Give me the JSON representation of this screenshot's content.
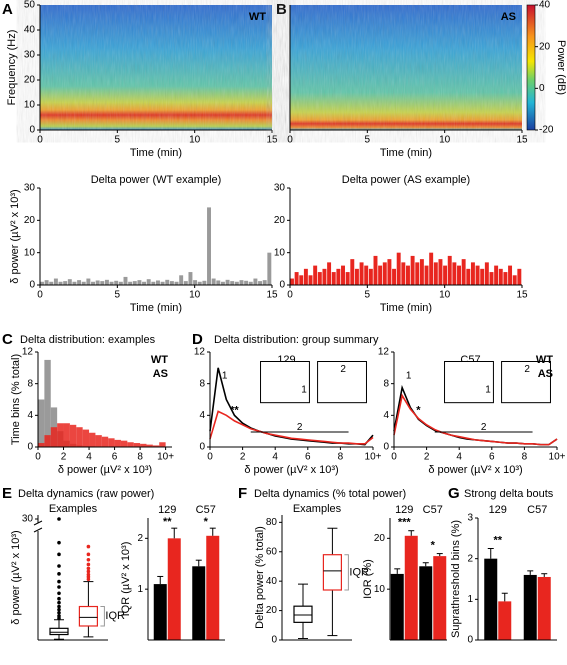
{
  "chart_data": [
    {
      "type": "heatmap",
      "panel": "A",
      "label": "WT",
      "xlabel": "Time (min)",
      "ylabel": "Frequency (Hz)",
      "xlim": [
        0,
        15
      ],
      "xticks": [
        0,
        5,
        10,
        15
      ],
      "ylim": [
        0,
        50
      ],
      "yticks": [
        0,
        10,
        20,
        30,
        40,
        50
      ]
    },
    {
      "type": "heatmap",
      "panel": "B",
      "label": "AS",
      "xlabel": "Time (min)",
      "xlim": [
        0,
        15
      ],
      "xticks": [
        0,
        5,
        10,
        15
      ],
      "ylim": [
        0,
        50
      ],
      "colorbar": {
        "label": "Power (dB)",
        "lim": [
          -20,
          40
        ],
        "ticks": [
          -20,
          0,
          20,
          40
        ]
      }
    },
    {
      "type": "bar",
      "title": "Delta power (WT example)",
      "xlabel": "Time (min)",
      "ylabel": "δ power (µV² x 10³)",
      "xlim": [
        0,
        15
      ],
      "xticks": [
        0,
        5,
        10,
        15
      ],
      "ylim": [
        0,
        30
      ],
      "yticks": [
        0,
        10,
        20,
        30
      ],
      "color": "#9a9a9a",
      "x": [
        0,
        0.3,
        0.6,
        0.9,
        1.2,
        1.5,
        1.8,
        2.1,
        2.4,
        2.7,
        3,
        3.3,
        3.6,
        3.9,
        4.2,
        4.5,
        4.8,
        5.1,
        5.4,
        5.7,
        6,
        6.3,
        6.6,
        6.9,
        7.2,
        7.5,
        7.8,
        8.1,
        8.4,
        8.7,
        9,
        9.3,
        9.6,
        9.9,
        10.2,
        10.5,
        10.8,
        11.1,
        11.4,
        11.7,
        12,
        12.3,
        12.6,
        12.9,
        13.2,
        13.5,
        13.8,
        14.1,
        14.4,
        14.7
      ],
      "values": [
        1,
        1.5,
        1,
        2,
        1,
        1.2,
        1.8,
        1,
        1.5,
        1,
        2,
        1,
        1.4,
        1.2,
        1.6,
        1,
        1.3,
        1,
        2.5,
        1,
        1.2,
        1.5,
        1,
        1.8,
        1,
        1.4,
        1,
        1.6,
        1.2,
        1,
        3,
        1.2,
        4,
        1.5,
        1,
        1.3,
        24,
        2,
        1.4,
        1,
        1.6,
        1.2,
        1,
        1.5,
        1.3,
        1,
        2,
        1.2,
        1.5,
        10
      ]
    },
    {
      "type": "bar",
      "title": "Delta power (AS example)",
      "xlabel": "Time (min)",
      "xlim": [
        0,
        15
      ],
      "xticks": [
        0,
        5,
        10,
        15
      ],
      "ylim": [
        0,
        30
      ],
      "yticks": [
        0,
        10,
        20,
        30
      ],
      "color": "#e8261f",
      "x": [
        0,
        0.3,
        0.6,
        0.9,
        1.2,
        1.5,
        1.8,
        2.1,
        2.4,
        2.7,
        3,
        3.3,
        3.6,
        3.9,
        4.2,
        4.5,
        4.8,
        5.1,
        5.4,
        5.7,
        6,
        6.3,
        6.6,
        6.9,
        7.2,
        7.5,
        7.8,
        8.1,
        8.4,
        8.7,
        9,
        9.3,
        9.6,
        9.9,
        10.2,
        10.5,
        10.8,
        11.1,
        11.4,
        11.7,
        12,
        12.3,
        12.6,
        12.9,
        13.2,
        13.5,
        13.8,
        14.1,
        14.4,
        14.7
      ],
      "values": [
        2,
        4,
        3,
        5,
        3,
        6,
        4,
        5,
        7,
        4,
        5,
        6,
        4,
        8,
        5,
        7,
        6,
        5,
        9,
        6,
        7,
        8,
        5,
        10,
        7,
        6,
        9,
        7,
        8,
        6,
        10,
        7,
        8,
        6,
        9,
        7,
        6,
        8,
        5,
        7,
        6,
        5,
        7,
        4,
        6,
        5,
        4,
        6,
        3,
        5
      ]
    },
    {
      "type": "histogram",
      "panel": "C",
      "title": "Delta distribution: examples",
      "xlabel": "δ power (µV² x 10³)",
      "ylabel": "Time bins (% total)",
      "xlim": [
        0,
        10.5
      ],
      "xticks": [
        0,
        2,
        4,
        6,
        8,
        {
          "value": 10,
          "label": "10+"
        }
      ],
      "ylim": [
        0,
        12
      ],
      "yticks": [
        0,
        4,
        8,
        12
      ],
      "bins": [
        0,
        0.5,
        1,
        1.5,
        2,
        2.5,
        3,
        3.5,
        4,
        4.5,
        5,
        5.5,
        6,
        6.5,
        7,
        7.5,
        8,
        8.5,
        9,
        9.5,
        10
      ],
      "series": [
        {
          "name": "WT",
          "color": "#9a9a9a",
          "values": [
            6,
            11,
            5,
            2,
            0.8,
            0.4,
            0.2,
            0.1,
            0.1,
            0,
            0,
            0,
            0,
            0,
            0,
            0,
            0,
            0,
            0,
            0
          ]
        },
        {
          "name": "AS",
          "color": "#e8261f",
          "values": [
            0.5,
            1.5,
            2.5,
            3,
            3,
            2.8,
            2.5,
            2.2,
            1.8,
            1.5,
            1.3,
            1.1,
            0.9,
            0.8,
            0.6,
            0.5,
            0.4,
            0.3,
            0.2,
            0.6
          ]
        }
      ]
    },
    {
      "type": "line",
      "panel": "D",
      "title": "Delta distribution: group summary",
      "label": "129",
      "annotations": [
        "1",
        "2",
        "**"
      ],
      "xlabel": "δ power (µV² x 10³)",
      "xlim": [
        0,
        10
      ],
      "xticks": [
        0,
        2,
        4,
        6,
        8,
        {
          "value": 10,
          "label": "10+"
        }
      ],
      "ylim": [
        0,
        12
      ],
      "yticks": [
        0,
        4,
        8,
        12
      ],
      "x": [
        0,
        0.5,
        1,
        1.5,
        2,
        2.5,
        3,
        3.5,
        4,
        4.5,
        5,
        5.5,
        6,
        6.5,
        7,
        7.5,
        8,
        8.5,
        9,
        9.5,
        10
      ],
      "series": [
        {
          "color": "#000000",
          "values": [
            2,
            10,
            6,
            4,
            3,
            2.4,
            2,
            1.7,
            1.4,
            1.2,
            1,
            0.9,
            0.8,
            0.7,
            0.6,
            0.5,
            0.5,
            0.4,
            0.4,
            0.3,
            1.5
          ]
        },
        {
          "color": "#e8261f",
          "values": [
            1,
            4.5,
            4,
            3.3,
            2.8,
            2.3,
            2,
            1.7,
            1.5,
            1.3,
            1.1,
            1,
            0.9,
            0.8,
            0.7,
            0.6,
            0.5,
            0.5,
            0.4,
            0.4,
            1.2
          ]
        }
      ]
    },
    {
      "type": "line",
      "label": "C57",
      "annotations": [
        "1",
        "2",
        "*"
      ],
      "xlabel": "δ power (µV² x 10³)",
      "xlim": [
        0,
        10
      ],
      "xticks": [
        0,
        2,
        4,
        6,
        8,
        {
          "value": 10,
          "label": "10+"
        }
      ],
      "ylim": [
        0,
        12
      ],
      "yticks": [
        0,
        4,
        8,
        12
      ],
      "x": [
        0,
        0.5,
        1,
        1.5,
        2,
        2.5,
        3,
        3.5,
        4,
        4.5,
        5,
        5.5,
        6,
        6.5,
        7,
        7.5,
        8,
        8.5,
        9,
        9.5,
        10
      ],
      "series": [
        {
          "name": "WT",
          "color": "#000000",
          "values": [
            2,
            7.5,
            5,
            3.5,
            2.7,
            2.1,
            1.8,
            1.5,
            1.2,
            1,
            0.9,
            0.8,
            0.7,
            0.6,
            0.5,
            0.5,
            0.4,
            0.4,
            0.3,
            0.3,
            1
          ]
        },
        {
          "name": "AS",
          "color": "#e8261f",
          "values": [
            1.5,
            6.5,
            4.8,
            3.6,
            2.8,
            2.2,
            1.8,
            1.5,
            1.3,
            1.1,
            0.9,
            0.8,
            0.7,
            0.6,
            0.5,
            0.5,
            0.4,
            0.4,
            0.3,
            0.3,
            1
          ]
        }
      ]
    },
    {
      "type": "box",
      "panel": "E",
      "title": "Delta dynamics (raw power)",
      "subtitle": "Examples",
      "annotation": "IQR",
      "ylabel": "δ power (µV² x 10³)",
      "ylim": [
        0,
        31
      ],
      "axis_break": [
        14,
        29
      ],
      "yticks": [
        30
      ],
      "boxes": [
        {
          "color": "#000000",
          "min": 0.1,
          "q1": 0.7,
          "median": 1,
          "q3": 1.5,
          "max": 2.6,
          "outliers": [
            2.8,
            3.1,
            3.5,
            3.9,
            4.3,
            4.8,
            5.3,
            6,
            6.8,
            7.5,
            8.5,
            9.5,
            11,
            12.5,
            30
          ]
        },
        {
          "color": "#e8261f",
          "min": 0.4,
          "q1": 1.8,
          "median": 2.9,
          "q3": 4.3,
          "max": 7.5,
          "outliers": [
            7.8,
            8.1,
            8.4,
            8.8,
            9.2,
            9.7,
            10.3,
            11,
            12
          ]
        }
      ]
    },
    {
      "type": "grouped_bar",
      "ylabel": "IQR (µV² x 10³)",
      "ylim": [
        0,
        2.4
      ],
      "yticks": [
        1,
        2
      ],
      "categories": [
        "129",
        "C57"
      ],
      "significance": [
        "**",
        "*"
      ],
      "series": [
        {
          "color": "#000000",
          "values": [
            1.1,
            1.45
          ],
          "errors": [
            0.15,
            0.12
          ]
        },
        {
          "color": "#e8261f",
          "values": [
            2.0,
            2.05
          ],
          "errors": [
            0.2,
            0.15
          ]
        }
      ]
    },
    {
      "type": "box",
      "panel": "F",
      "title": "Delta dynamics (% total power)",
      "subtitle": "Examples",
      "annotation": "IQR",
      "ylabel": "Delta power (% total)",
      "ylim": [
        0,
        85
      ],
      "yticks": [
        0,
        20,
        40,
        60,
        80
      ],
      "boxes": [
        {
          "color": "#000000",
          "min": 1,
          "q1": 12,
          "median": 17,
          "q3": 23,
          "max": 38,
          "outliers": []
        },
        {
          "color": "#e8261f",
          "min": 3,
          "q1": 34,
          "median": 47,
          "q3": 58,
          "max": 76,
          "outliers": []
        }
      ]
    },
    {
      "type": "grouped_bar",
      "ylabel": "IOR (%)",
      "ylim": [
        0,
        24
      ],
      "yticks": [
        10,
        20
      ],
      "categories": [
        "129",
        "C57"
      ],
      "significance": [
        "***",
        "*"
      ],
      "series": [
        {
          "color": "#000000",
          "values": [
            13,
            14.5
          ],
          "errors": [
            1,
            0.7
          ]
        },
        {
          "color": "#e8261f",
          "values": [
            20.5,
            16.5
          ],
          "errors": [
            1,
            0.5
          ]
        }
      ]
    },
    {
      "type": "grouped_bar",
      "panel": "G",
      "title": "Strong delta bouts",
      "ylabel": "Suprathreshold bins (%)",
      "ylim": [
        0,
        3
      ],
      "yticks": [
        0,
        1,
        2,
        3
      ],
      "categories": [
        "129",
        "C57"
      ],
      "significance": [
        "**"
      ],
      "series": [
        {
          "color": "#000000",
          "values": [
            2.0,
            1.6
          ],
          "errors": [
            0.25,
            0.1
          ]
        },
        {
          "color": "#e8261f",
          "values": [
            0.95,
            1.55
          ],
          "errors": [
            0.2,
            0.08
          ]
        }
      ]
    }
  ]
}
